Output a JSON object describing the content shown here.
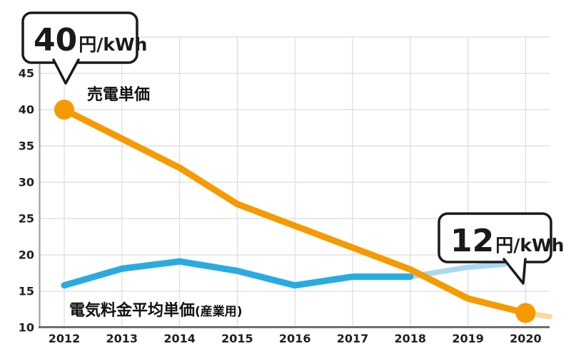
{
  "chart_data": {
    "type": "line",
    "title": "",
    "xlabel": "",
    "ylabel": "円/kWh",
    "ylim": [
      10,
      50
    ],
    "grid": true,
    "x_years": [
      2012,
      2013,
      2014,
      2015,
      2016,
      2017,
      2018,
      2019,
      2020
    ],
    "y_tick_labels": [
      45,
      40,
      35,
      30,
      25,
      20,
      15,
      10
    ],
    "y_gridlines": [
      15,
      20,
      25,
      30,
      35,
      40,
      45,
      50
    ],
    "series": [
      {
        "name": "電気料金平均単価(産業用)",
        "role": "projection",
        "color": "#A9D7F0",
        "x": [
          2018,
          2019,
          2019.63
        ],
        "values": [
          17,
          18.3,
          18.7
        ]
      },
      {
        "name": "電気料金平均単価(産業用)",
        "role": "main",
        "color": "#29ABE2",
        "x": [
          2012,
          2013,
          2014,
          2015,
          2016,
          2017,
          2018
        ],
        "values": [
          15.8,
          18.1,
          19.1,
          17.8,
          15.8,
          17,
          17
        ]
      },
      {
        "name": "売電単価",
        "role": "projection",
        "color": "#FBD9A0",
        "x": [
          2020,
          2020.42
        ],
        "values": [
          12,
          11.5
        ]
      },
      {
        "name": "売電単価",
        "role": "main",
        "color": "#F59A00",
        "x": [
          2012,
          2013,
          2014,
          2015,
          2016,
          2017,
          2018,
          2019,
          2020
        ],
        "values": [
          40,
          36,
          32,
          27,
          24,
          21,
          18,
          14,
          12
        ]
      }
    ],
    "markers": [
      {
        "x": 2012,
        "y": 40,
        "color": "#F59A00"
      },
      {
        "x": 2020,
        "y": 12,
        "color": "#F59A00"
      }
    ],
    "series_labels": [
      {
        "text": "売電単価"
      },
      {
        "text": "電気料金平均単価",
        "sub": "(産業用)"
      }
    ],
    "callouts": [
      {
        "label": "40円/kWh",
        "value": "40",
        "unit": "円/kWh",
        "points_to": {
          "x": 2012,
          "y": 40
        }
      },
      {
        "label": "12円/kWh",
        "value": "12",
        "unit": "円/kWh",
        "points_to": {
          "x": 2020,
          "y": 12
        }
      }
    ],
    "colors": {
      "orange": "#F59A00",
      "orange_light": "#FBD9A0",
      "blue": "#29ABE2",
      "blue_light": "#A9D7F0",
      "gridline": "#dcdcdc",
      "axis_left": "#9a9a9a",
      "axis_bottom": "#6f6f6f"
    }
  }
}
